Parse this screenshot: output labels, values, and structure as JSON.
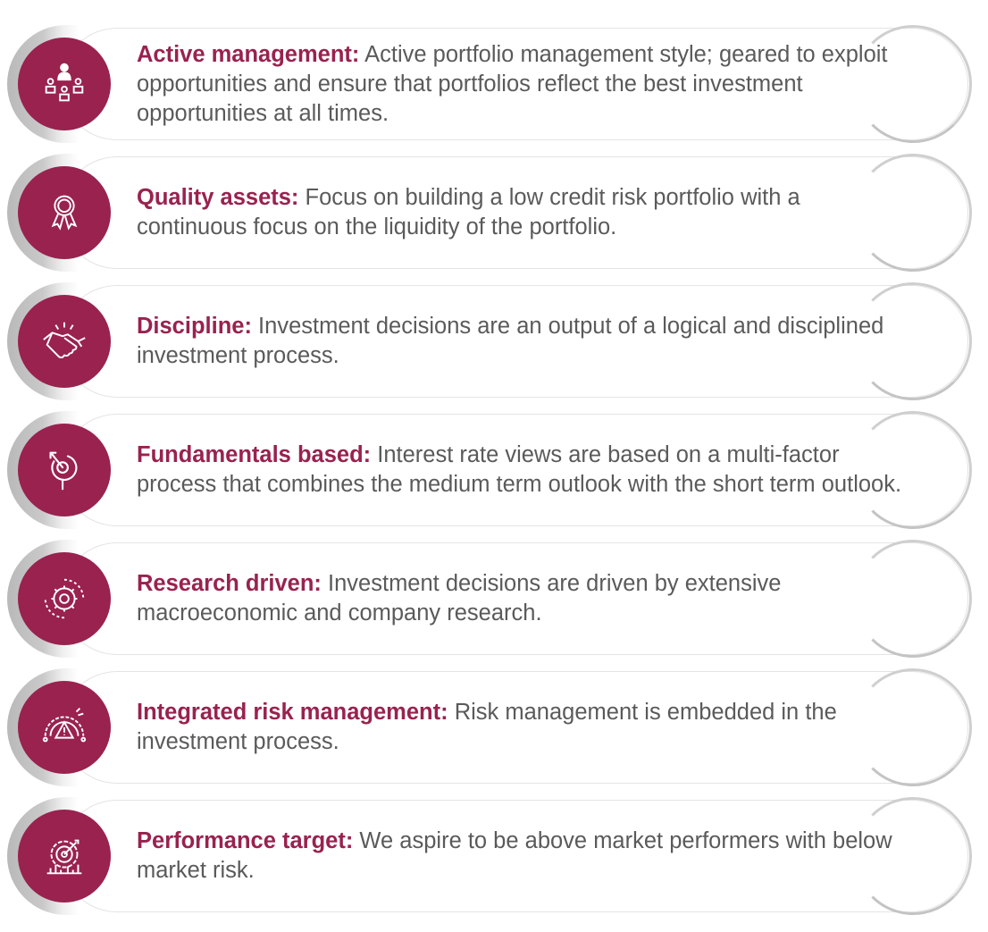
{
  "items": [
    {
      "icon": "people-hierarchy-icon",
      "title": "Active management:",
      "body": "Active portfolio management style; geared to exploit opportunities and ensure that portfolios reflect the best investment opportunities at all times."
    },
    {
      "icon": "award-ribbon-icon",
      "title": "Quality assets:",
      "body": "Focus on building a low credit risk portfolio with a continuous focus on the liquidity of the portfolio."
    },
    {
      "icon": "handshake-icon",
      "title": "Discipline:",
      "body": "Investment decisions are an output of a logical and disciplined investment process."
    },
    {
      "icon": "target-search-icon",
      "title": "Fundamentals based:",
      "body": "Interest rate views are based on a multi-factor process that combines the medium term outlook with the short term outlook."
    },
    {
      "icon": "gear-cycle-icon",
      "title": "Research driven:",
      "body": "Investment decisions are driven by extensive macroeconomic and company research."
    },
    {
      "icon": "risk-gauge-icon",
      "title": "Integrated risk management:",
      "body": "Risk management is embedded in the investment process."
    },
    {
      "icon": "performance-target-icon",
      "title": "Performance target:",
      "body": "We aspire to be above market performers with below market risk."
    }
  ],
  "colors": {
    "accent": "#99224f",
    "body_text": "#5a5a5a",
    "pill_shadow": "#b9b9b9"
  }
}
